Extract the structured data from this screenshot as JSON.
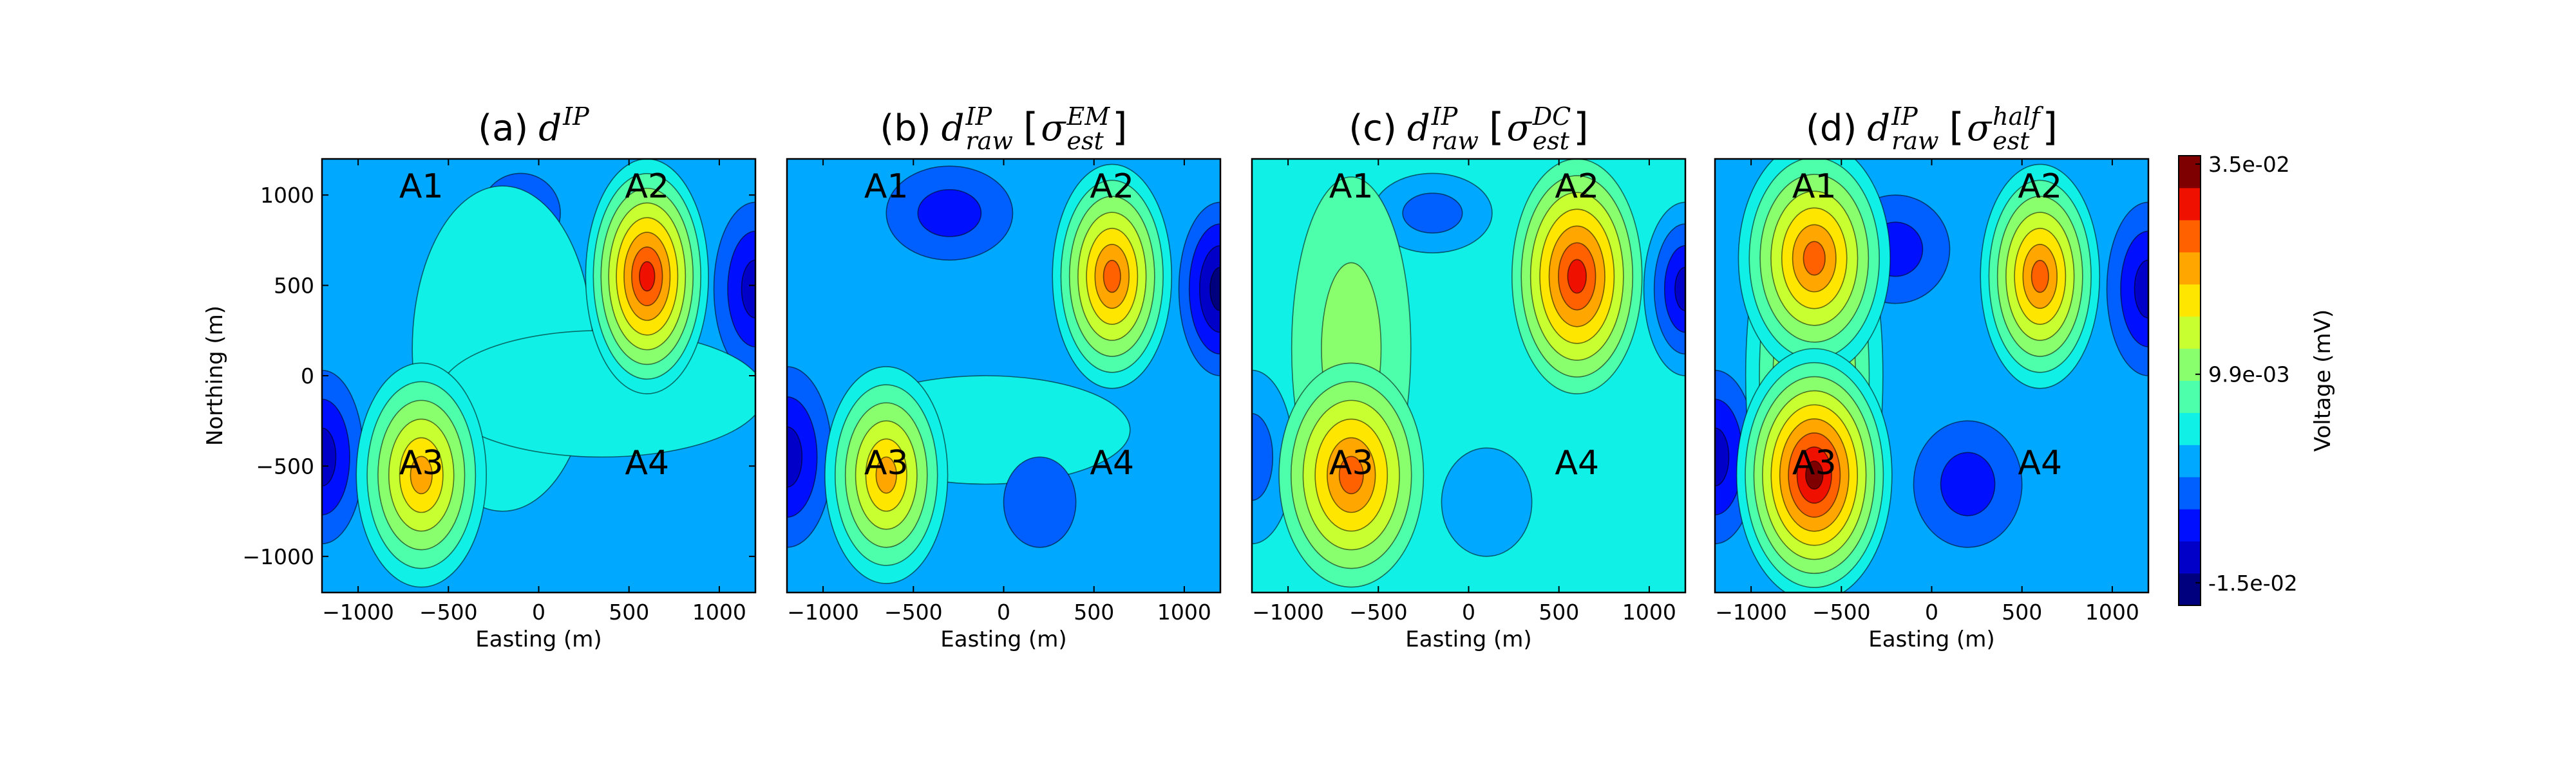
{
  "chart_data": [
    {
      "type": "contour",
      "title": {
        "label": "(a)",
        "symbol": "d",
        "sup": "IP"
      },
      "xlabel": "Easting (m)",
      "ylabel": "Northing (m)",
      "xlim": [
        -1200,
        1200
      ],
      "ylim": [
        -1200,
        1200
      ],
      "xticks": [
        {
          "value": -1000,
          "label": "−1000"
        },
        {
          "value": -500,
          "label": "−500"
        },
        0,
        500,
        1000
      ],
      "yticks": [
        {
          "value": -1000,
          "label": "−1000"
        },
        {
          "value": -500,
          "label": "−500"
        },
        0,
        500,
        1000
      ],
      "annotations": [
        {
          "text": "A1",
          "x": -650,
          "y": 1050,
          "color": "#000000"
        },
        {
          "text": "A2",
          "x": 600,
          "y": 1050,
          "color": "#e02020"
        },
        {
          "text": "A3",
          "x": -650,
          "y": -480,
          "color": "#e02020"
        },
        {
          "text": "A4",
          "x": 600,
          "y": -480,
          "color": "#000000"
        }
      ]
    },
    {
      "type": "contour",
      "title": {
        "label": "(b)",
        "symbol": "d",
        "sup": "IP",
        "sub": "raw",
        "brackets": [
          "[",
          "]"
        ],
        "arg": {
          "symbol": "σ",
          "sub": "est",
          "sup": "EM"
        }
      },
      "xlabel": "Easting (m)",
      "xlim": [
        -1200,
        1200
      ],
      "ylim": [
        -1200,
        1200
      ],
      "xticks": [
        {
          "value": -1000,
          "label": "−1000"
        },
        {
          "value": -500,
          "label": "−500"
        },
        0,
        500,
        1000
      ],
      "annotations": [
        {
          "text": "A1",
          "x": -650,
          "y": 1050,
          "color": "#000000"
        },
        {
          "text": "A2",
          "x": 600,
          "y": 1050,
          "color": "#e02020"
        },
        {
          "text": "A3",
          "x": -650,
          "y": -480,
          "color": "#e02020"
        },
        {
          "text": "A4",
          "x": 600,
          "y": -480,
          "color": "#000000"
        }
      ]
    },
    {
      "type": "contour",
      "title": {
        "label": "(c)",
        "symbol": "d",
        "sup": "IP",
        "sub": "raw",
        "brackets": [
          "[",
          "]"
        ],
        "arg": {
          "symbol": "σ",
          "sub": "est",
          "sup": "DC"
        }
      },
      "xlabel": "Easting (m)",
      "xlim": [
        -1200,
        1200
      ],
      "ylim": [
        -1200,
        1200
      ],
      "xticks": [
        {
          "value": -1000,
          "label": "−1000"
        },
        {
          "value": -500,
          "label": "−500"
        },
        0,
        500,
        1000
      ],
      "annotations": [
        {
          "text": "A1",
          "x": -650,
          "y": 1050,
          "color": "#000000"
        },
        {
          "text": "A2",
          "x": 600,
          "y": 1050,
          "color": "#e02020"
        },
        {
          "text": "A3",
          "x": -650,
          "y": -480,
          "color": "#e02020"
        },
        {
          "text": "A4",
          "x": 600,
          "y": -480,
          "color": "#000000"
        }
      ]
    },
    {
      "type": "contour",
      "title": {
        "label": "(d)",
        "symbol": "d",
        "sup": "IP",
        "sub": "raw",
        "brackets": [
          "[",
          "]"
        ],
        "arg": {
          "symbol": "σ",
          "sub": "est",
          "sup": "half"
        }
      },
      "xlabel": "Easting (m)",
      "xlim": [
        -1200,
        1200
      ],
      "ylim": [
        -1200,
        1200
      ],
      "xticks": [
        {
          "value": -1000,
          "label": "−1000"
        },
        {
          "value": -500,
          "label": "−500"
        },
        0,
        500,
        1000
      ],
      "annotations": [
        {
          "text": "A1",
          "x": -650,
          "y": 1050,
          "color": "#000000"
        },
        {
          "text": "A2",
          "x": 600,
          "y": 1050,
          "color": "#e02020"
        },
        {
          "text": "A3",
          "x": -650,
          "y": -480,
          "color": "#e02020"
        },
        {
          "text": "A4",
          "x": 600,
          "y": -480,
          "color": "#000000"
        }
      ]
    }
  ],
  "colorbar": {
    "label": "Voltage (mV)",
    "lim": [
      -0.0177,
      0.036
    ],
    "ticks": [
      {
        "value": 0.035,
        "label": "3.5e-02"
      },
      {
        "value": 0.0099,
        "label": "9.9e-03"
      },
      {
        "value": -0.015,
        "label": "-1.5e-02"
      }
    ]
  }
}
